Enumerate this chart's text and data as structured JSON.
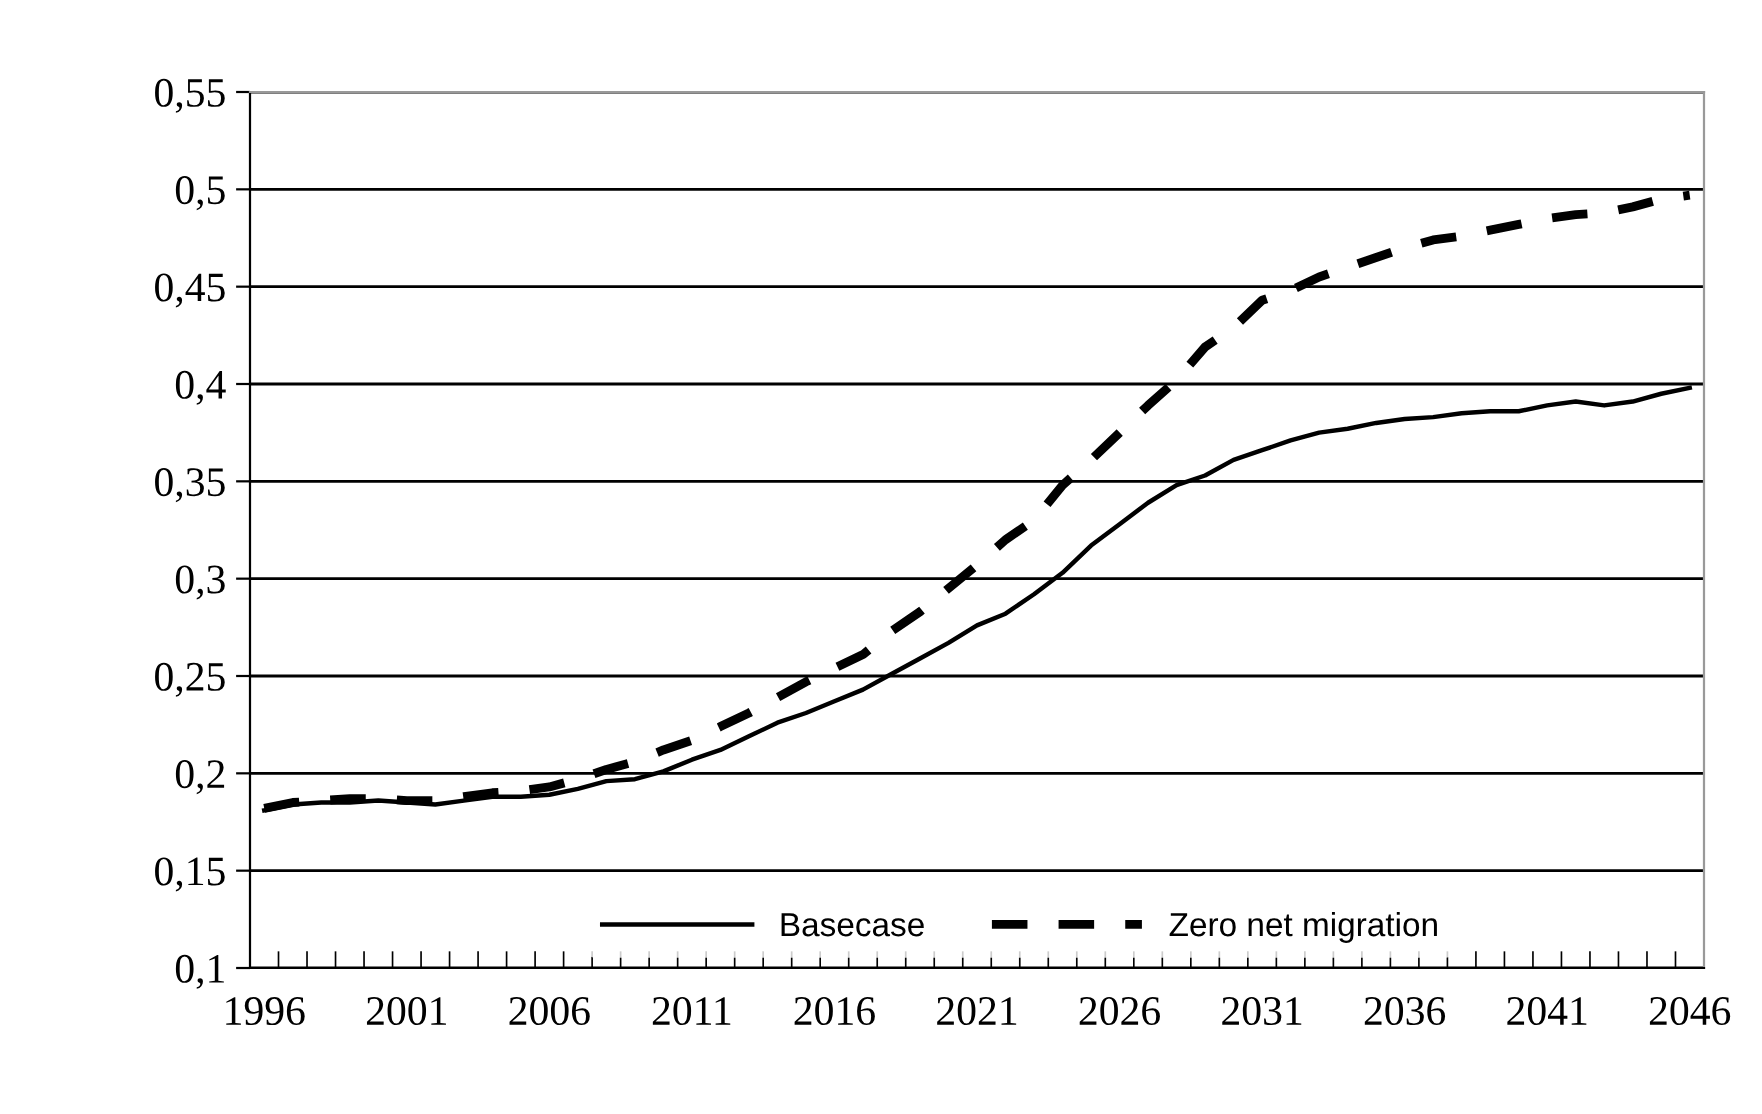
{
  "chart_data": {
    "type": "line",
    "categories": [
      "1996",
      null,
      null,
      null,
      null,
      "2001",
      null,
      null,
      null,
      null,
      "2006",
      null,
      null,
      null,
      null,
      "2011",
      null,
      null,
      null,
      null,
      "2016",
      null,
      null,
      null,
      null,
      "2021",
      null,
      null,
      null,
      null,
      "2026",
      null,
      null,
      null,
      null,
      "2031",
      null,
      null,
      null,
      null,
      "2036",
      null,
      null,
      null,
      null,
      "2041",
      null,
      null,
      null,
      null,
      "2046"
    ],
    "series": [
      {
        "name": "Basecase",
        "color": "#000000",
        "line_style": "solid",
        "values": [
          0.181,
          0.184,
          0.185,
          0.185,
          0.186,
          0.185,
          0.184,
          0.186,
          0.188,
          0.188,
          0.189,
          0.192,
          0.196,
          0.197,
          0.201,
          0.207,
          0.212,
          0.219,
          0.226,
          0.231,
          0.237,
          0.243,
          0.251,
          0.259,
          0.267,
          0.276,
          0.282,
          0.292,
          0.303,
          0.317,
          0.328,
          0.339,
          0.348,
          0.353,
          0.361,
          0.366,
          0.371,
          0.375,
          0.377,
          0.38,
          0.382,
          0.383,
          0.385,
          0.386,
          0.386,
          0.389,
          0.391,
          0.389,
          0.391,
          0.395,
          0.398
        ]
      },
      {
        "name": "Zero net migration",
        "color": "#000000",
        "line_style": "dashed",
        "values": [
          0.182,
          0.185,
          0.186,
          0.187,
          0.187,
          0.186,
          0.186,
          0.188,
          0.19,
          0.191,
          0.193,
          0.197,
          0.202,
          0.206,
          0.212,
          0.217,
          0.224,
          0.231,
          0.239,
          0.247,
          0.254,
          0.261,
          0.273,
          0.283,
          0.295,
          0.307,
          0.32,
          0.33,
          0.348,
          0.361,
          0.375,
          0.389,
          0.402,
          0.419,
          0.429,
          0.443,
          0.448,
          0.455,
          0.46,
          0.465,
          0.47,
          0.474,
          0.476,
          0.479,
          0.482,
          0.485,
          0.487,
          0.488,
          0.491,
          0.495,
          0.497
        ]
      }
    ],
    "ylim": [
      0.1,
      0.55
    ],
    "yticks": [
      {
        "value": 0.1,
        "label": "0,1"
      },
      {
        "value": 0.15,
        "label": "0,15"
      },
      {
        "value": 0.2,
        "label": "0,2"
      },
      {
        "value": 0.25,
        "label": "0,25"
      },
      {
        "value": 0.3,
        "label": "0,3"
      },
      {
        "value": 0.35,
        "label": "0,35"
      },
      {
        "value": 0.4,
        "label": "0,4"
      },
      {
        "value": 0.45,
        "label": "0,45"
      },
      {
        "value": 0.5,
        "label": "0,5"
      },
      {
        "value": 0.55,
        "label": "0,55"
      }
    ],
    "grid": "y",
    "legend": "bottom",
    "marker": "none"
  }
}
